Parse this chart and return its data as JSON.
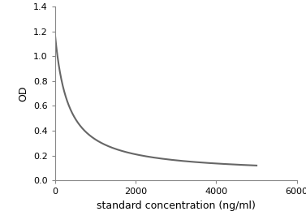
{
  "xlabel": "standard concentration (ng/ml)",
  "ylabel": "OD",
  "xlim": [
    0,
    6000
  ],
  "ylim": [
    0,
    1.4
  ],
  "xticks": [
    0,
    2000,
    4000,
    6000
  ],
  "yticks": [
    0,
    0.2,
    0.4,
    0.6,
    0.8,
    1.0,
    1.2,
    1.4
  ],
  "line_color": "#666666",
  "line_width": 1.5,
  "background_color": "#ffffff",
  "A": 200.0,
  "B": 0.08,
  "C": 0.05,
  "curve_x_end": 5000,
  "xlabel_fontsize": 9,
  "ylabel_fontsize": 9,
  "tick_fontsize": 8,
  "spine_color": "#888888"
}
